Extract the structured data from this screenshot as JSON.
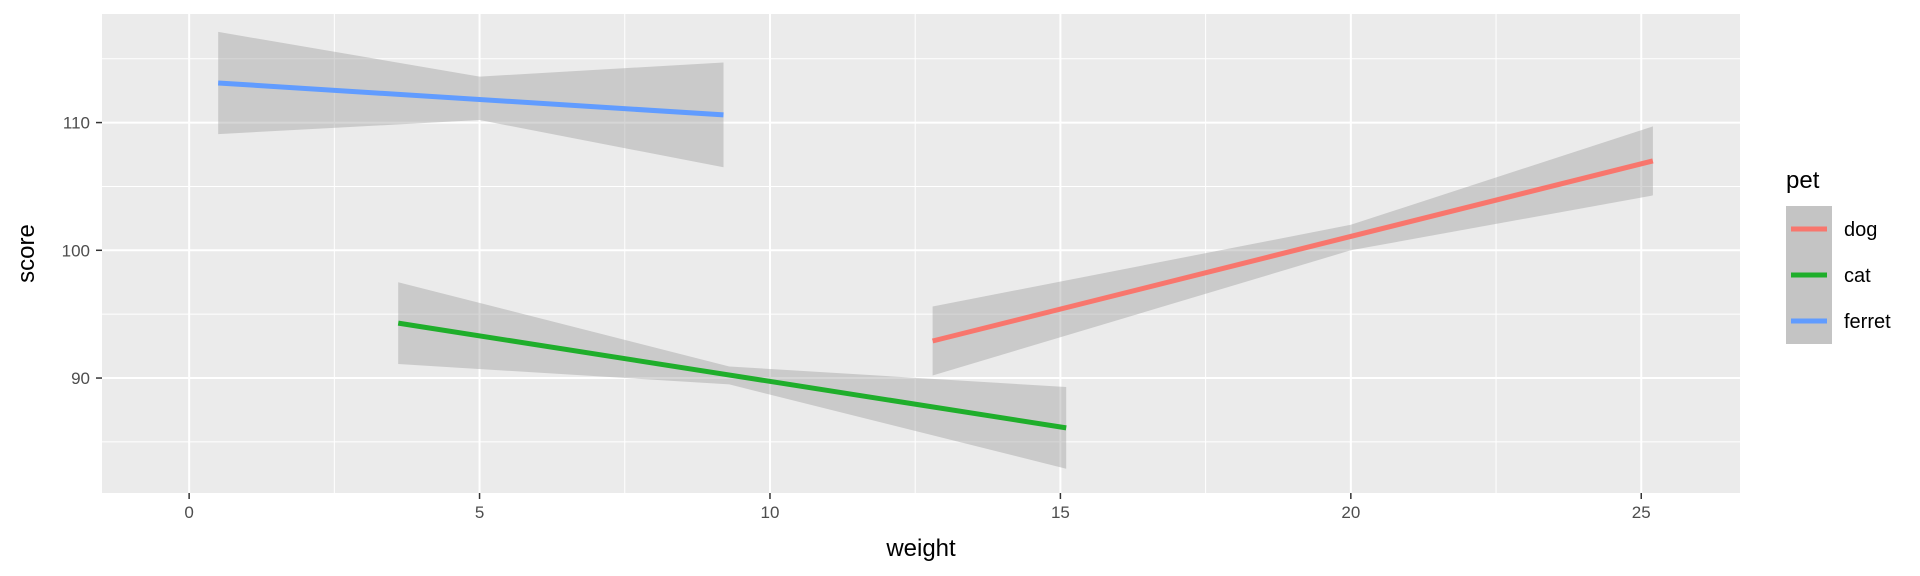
{
  "chart_data": {
    "type": "line",
    "xlabel": "weight",
    "ylabel": "score",
    "xlim": [
      -1.5,
      26.7
    ],
    "ylim": [
      81,
      118.5
    ],
    "x_ticks": [
      0,
      5,
      10,
      15,
      20,
      25
    ],
    "x_tick_labels": [
      "0",
      "5",
      "10",
      "15",
      "20",
      "25"
    ],
    "y_ticks": [
      90,
      100,
      110
    ],
    "y_tick_labels": [
      "90",
      "100",
      "110"
    ],
    "grid": true,
    "legend": {
      "title": "pet",
      "placement": "right",
      "entries": [
        "dog",
        "cat",
        "ferret"
      ]
    },
    "series": [
      {
        "name": "dog",
        "color": "#F8766D",
        "x": [
          12.8,
          25.2
        ],
        "y": [
          92.9,
          107.0
        ],
        "ci_lower": [
          90.2,
          104.3
        ],
        "ci_upper": [
          95.6,
          109.7
        ],
        "ci_mid_x": 20.0,
        "ci_mid_lower": 100.0,
        "ci_mid_upper": 102.0
      },
      {
        "name": "cat",
        "color": "#1FAE2B",
        "x": [
          3.6,
          15.1
        ],
        "y": [
          94.3,
          86.1
        ],
        "ci_lower": [
          91.1,
          82.9
        ],
        "ci_upper": [
          97.5,
          89.3
        ],
        "ci_mid_x": 9.3,
        "ci_mid_lower": 89.5,
        "ci_mid_upper": 90.9
      },
      {
        "name": "ferret",
        "color": "#619CFF",
        "x": [
          0.5,
          9.2
        ],
        "y": [
          113.1,
          110.6
        ],
        "ci_lower": [
          109.1,
          106.5
        ],
        "ci_upper": [
          117.1,
          114.7
        ],
        "ci_mid_x": 5.0,
        "ci_mid_lower": 110.2,
        "ci_mid_upper": 113.6
      }
    ]
  }
}
